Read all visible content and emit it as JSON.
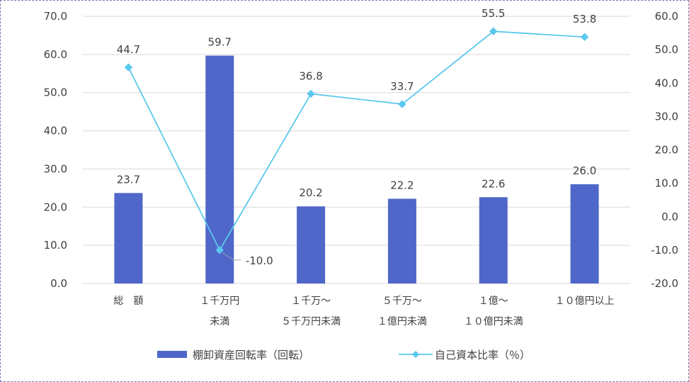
{
  "chart_data": {
    "type": "bar",
    "categories": [
      [
        "総　額"
      ],
      [
        "１千万円",
        "未満"
      ],
      [
        "１千万～",
        "５千万円未満"
      ],
      [
        "５千万～",
        "１億円未満"
      ],
      [
        "１億～",
        "１０億円未満"
      ],
      [
        "１０億円以上"
      ]
    ],
    "series": [
      {
        "name": "棚卸資産回転率（回転）",
        "type": "bar",
        "axis": "left",
        "color": "#4f67c9",
        "values": [
          23.7,
          59.7,
          20.2,
          22.2,
          22.6,
          26.0
        ],
        "labels": [
          "23.7",
          "59.7",
          "20.2",
          "22.2",
          "22.6",
          "26.0"
        ]
      },
      {
        "name": "自己資本比率（％）",
        "type": "line",
        "axis": "right",
        "color": "#5bc8ee",
        "marker": "diamond",
        "values": [
          44.7,
          -10.0,
          36.8,
          33.7,
          55.5,
          53.8
        ],
        "labels": [
          "44.7",
          "-10.0",
          "36.8",
          "33.7",
          "55.5",
          "53.8"
        ]
      }
    ],
    "y_left": {
      "ylim": [
        0,
        70
      ],
      "ticks": [
        "0.0",
        "10.0",
        "20.0",
        "30.0",
        "40.0",
        "50.0",
        "60.0",
        "70.0"
      ]
    },
    "y_right": {
      "ylim": [
        -20,
        60
      ],
      "ticks": [
        "-20.0",
        "-10.0",
        "0.0",
        "10.0",
        "20.0",
        "30.0",
        "40.0",
        "50.0",
        "60.0"
      ]
    },
    "grid": true,
    "legend": "bottom"
  }
}
